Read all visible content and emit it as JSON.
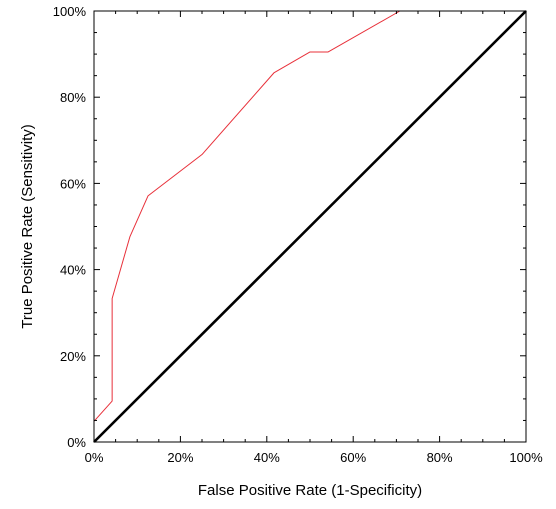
{
  "chart_data": {
    "type": "line",
    "title": "",
    "xlabel": "False Positive Rate (1-Specificity)",
    "ylabel": "True Positive Rate (Sensitivity)",
    "xlim": [
      0,
      1
    ],
    "ylim": [
      0,
      1
    ],
    "grid": false,
    "legend": "none",
    "x_ticks": [
      {
        "value": 0,
        "label": "0%"
      },
      {
        "value": 0.2,
        "label": "20%"
      },
      {
        "value": 0.4,
        "label": "40%"
      },
      {
        "value": 0.6,
        "label": "60%"
      },
      {
        "value": 0.8,
        "label": "80%"
      },
      {
        "value": 1,
        "label": "100%"
      }
    ],
    "y_ticks": [
      {
        "value": 0,
        "label": "0%"
      },
      {
        "value": 0.2,
        "label": "20%"
      },
      {
        "value": 0.4,
        "label": "40%"
      },
      {
        "value": 0.6,
        "label": "60%"
      },
      {
        "value": 0.8,
        "label": "80%"
      },
      {
        "value": 1,
        "label": "100%"
      }
    ],
    "series": [
      {
        "color": "#e8303a",
        "x": [
          0,
          0,
          0.042,
          0.042,
          0.083,
          0.125,
          0.25,
          0.417,
          0.5,
          0.542,
          0.708,
          1.0
        ],
        "y": [
          0,
          0.048,
          0.095,
          0.333,
          0.476,
          0.571,
          0.667,
          0.857,
          0.905,
          0.905,
          1.0,
          1.0
        ]
      },
      {
        "color": "#000000",
        "x": [
          0,
          1
        ],
        "y": [
          0,
          1
        ]
      }
    ]
  }
}
